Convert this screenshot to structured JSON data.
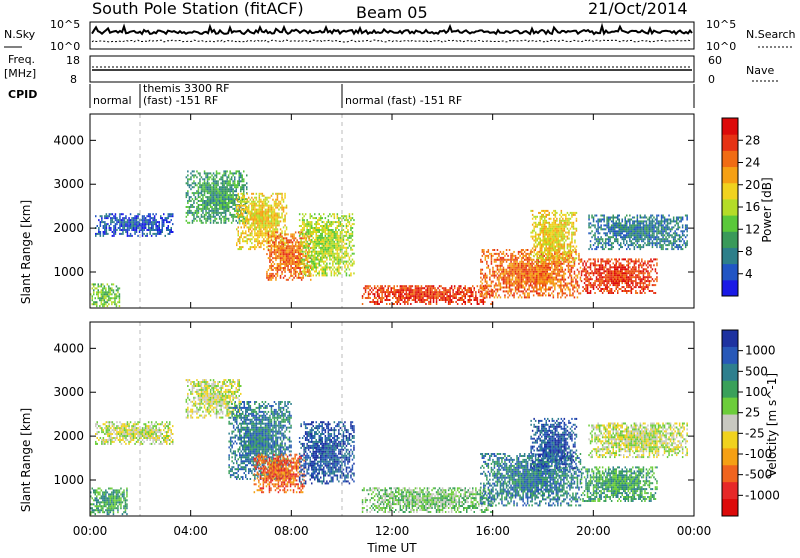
{
  "header": {
    "station": "South Pole Station (fitACF)",
    "beam": "Beam 05",
    "date": "21/Oct/2014"
  },
  "strips": {
    "nsky_label": "N.Sky",
    "nsky_ticks": [
      "10^5",
      "10^0"
    ],
    "nsearch_label": "N.Search",
    "nsearch_ticks": [
      "10^5",
      "10^0"
    ],
    "freq_label_1": "Freq.",
    "freq_label_2": "[MHz]",
    "freq_ticks": [
      "18",
      "8"
    ],
    "nave_label": "Nave",
    "nave_ticks": [
      "60",
      "0"
    ],
    "cpid_label": "CPID",
    "cpid_segments": [
      {
        "line1": "normal",
        "line2": ""
      },
      {
        "line1": "themis 3300 RF",
        "line2": "(fast) -151 RF"
      },
      {
        "line1": "normal (fast) -151 RF",
        "line2": ""
      }
    ]
  },
  "chart_data": [
    {
      "type": "heatmap",
      "panel": "power",
      "title": "South Pole Station (fitACF)",
      "xlabel": "Time UT",
      "ylabel": "Slant Range [km]",
      "x_ticks": [
        "00:00",
        "04:00",
        "08:00",
        "12:00",
        "16:00",
        "20:00",
        "00:00"
      ],
      "xlim_hours": [
        0,
        24
      ],
      "y_ticks": [
        1000,
        2000,
        3000,
        4000
      ],
      "ylim": [
        180,
        4600
      ],
      "colorbar": {
        "label": "Power [dB]",
        "ticks": [
          "4",
          "8",
          "12",
          "16",
          "20",
          "24",
          "28"
        ],
        "colors": [
          "#1a1ae6",
          "#2155c4",
          "#2d7f8a",
          "#3a9a5a",
          "#5ac83a",
          "#b4dc28",
          "#f0d21e",
          "#f5a014",
          "#f06c14",
          "#e63214",
          "#dc0a0a"
        ]
      },
      "echo_regions": [
        {
          "t_start": 0.2,
          "t_end": 3.3,
          "r_min": 1800,
          "r_max": 2300,
          "level": 1
        },
        {
          "t_start": 0.0,
          "t_end": 1.2,
          "r_min": 200,
          "r_max": 700,
          "level": 4
        },
        {
          "t_start": 3.8,
          "t_end": 6.2,
          "r_min": 2100,
          "r_max": 3300,
          "level": 3
        },
        {
          "t_start": 5.8,
          "t_end": 7.8,
          "r_min": 1500,
          "r_max": 2800,
          "level": 6
        },
        {
          "t_start": 7.0,
          "t_end": 8.8,
          "r_min": 800,
          "r_max": 1900,
          "level": 8
        },
        {
          "t_start": 8.3,
          "t_end": 10.5,
          "r_min": 900,
          "r_max": 2300,
          "level": 5
        },
        {
          "t_start": 10.8,
          "t_end": 16.0,
          "r_min": 250,
          "r_max": 700,
          "level": 9
        },
        {
          "t_start": 15.5,
          "t_end": 19.5,
          "r_min": 400,
          "r_max": 1500,
          "level": 8
        },
        {
          "t_start": 17.5,
          "t_end": 19.3,
          "r_min": 1200,
          "r_max": 2400,
          "level": 6
        },
        {
          "t_start": 19.5,
          "t_end": 22.5,
          "r_min": 500,
          "r_max": 1300,
          "level": 9
        },
        {
          "t_start": 19.8,
          "t_end": 23.7,
          "r_min": 1500,
          "r_max": 2300,
          "level": 2
        }
      ]
    },
    {
      "type": "heatmap",
      "panel": "velocity",
      "xlabel": "Time UT",
      "ylabel": "Slant Range [km]",
      "x_ticks": [
        "00:00",
        "04:00",
        "08:00",
        "12:00",
        "16:00",
        "20:00",
        "00:00"
      ],
      "xlim_hours": [
        0,
        24
      ],
      "y_ticks": [
        1000,
        2000,
        3000,
        4000
      ],
      "ylim": [
        180,
        4600
      ],
      "colorbar": {
        "label": "Velocity [m s^-1]",
        "ticks": [
          "1000",
          "500",
          "100",
          "25",
          "-25",
          "-100",
          "-500",
          "-1000"
        ],
        "colors": [
          "#1e32a0",
          "#2858b8",
          "#2e7f8e",
          "#3aa05a",
          "#6ccd3a",
          "#c8c8c0",
          "#f0d21e",
          "#f5a014",
          "#f0641e",
          "#e62828",
          "#dc0a0a"
        ]
      },
      "echo_regions": [
        {
          "t_start": 0.2,
          "t_end": 3.3,
          "r_min": 1800,
          "r_max": 2300,
          "level": 5
        },
        {
          "t_start": 0.0,
          "t_end": 1.5,
          "r_min": 200,
          "r_max": 800,
          "level": 3
        },
        {
          "t_start": 3.8,
          "t_end": 6.0,
          "r_min": 2400,
          "r_max": 3300,
          "level": 5
        },
        {
          "t_start": 5.5,
          "t_end": 8.0,
          "r_min": 1000,
          "r_max": 2800,
          "level": 2
        },
        {
          "t_start": 6.5,
          "t_end": 8.5,
          "r_min": 700,
          "r_max": 1600,
          "level": 8
        },
        {
          "t_start": 8.3,
          "t_end": 10.5,
          "r_min": 900,
          "r_max": 2300,
          "level": 1
        },
        {
          "t_start": 10.8,
          "t_end": 16.0,
          "r_min": 250,
          "r_max": 800,
          "level": 4
        },
        {
          "t_start": 15.5,
          "t_end": 19.5,
          "r_min": 400,
          "r_max": 1600,
          "level": 2
        },
        {
          "t_start": 17.5,
          "t_end": 19.3,
          "r_min": 1200,
          "r_max": 2400,
          "level": 1
        },
        {
          "t_start": 19.5,
          "t_end": 22.5,
          "r_min": 500,
          "r_max": 1300,
          "level": 3
        },
        {
          "t_start": 19.8,
          "t_end": 23.7,
          "r_min": 1500,
          "r_max": 2300,
          "level": 5
        }
      ]
    }
  ]
}
